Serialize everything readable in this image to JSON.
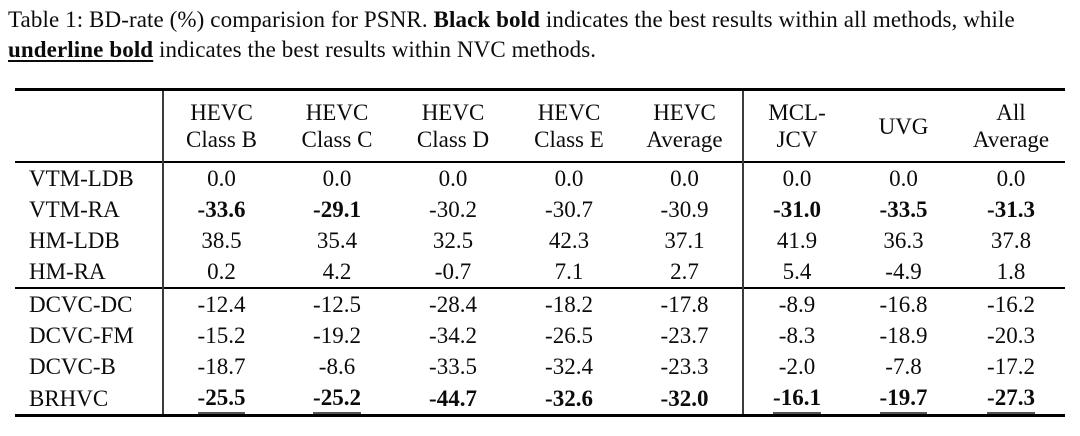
{
  "caption": {
    "segments": [
      {
        "text": "Table 1: BD-rate (%) comparision for PSNR. ",
        "style": "plain"
      },
      {
        "text": "Black bold",
        "style": "bold"
      },
      {
        "text": " indicates the best results within all methods, while ",
        "style": "plain"
      },
      {
        "text": "underline bold",
        "style": "bold-underline"
      },
      {
        "text": " indicates the best results within NVC methods.",
        "style": "plain"
      }
    ]
  },
  "table": {
    "header": {
      "row_label": "",
      "columns": [
        {
          "lines": [
            "HEVC",
            "Class B"
          ]
        },
        {
          "lines": [
            "HEVC",
            "Class C"
          ]
        },
        {
          "lines": [
            "HEVC",
            "Class D"
          ]
        },
        {
          "lines": [
            "HEVC",
            "Class E"
          ]
        },
        {
          "lines": [
            "HEVC",
            "Average"
          ]
        },
        {
          "lines": [
            "MCL-",
            "JCV"
          ]
        },
        {
          "lines": [
            "UVG"
          ]
        },
        {
          "lines": [
            "All",
            "Average"
          ]
        }
      ]
    },
    "groups": [
      {
        "name": "traditional-codecs",
        "rows": [
          {
            "label": "VTM-LDB",
            "cells": [
              {
                "v": "0.0",
                "style": "plain"
              },
              {
                "v": "0.0",
                "style": "plain"
              },
              {
                "v": "0.0",
                "style": "plain"
              },
              {
                "v": "0.0",
                "style": "plain"
              },
              {
                "v": "0.0",
                "style": "plain"
              },
              {
                "v": "0.0",
                "style": "plain"
              },
              {
                "v": "0.0",
                "style": "plain"
              },
              {
                "v": "0.0",
                "style": "plain"
              }
            ]
          },
          {
            "label": "VTM-RA",
            "cells": [
              {
                "v": "-33.6",
                "style": "bold"
              },
              {
                "v": "-29.1",
                "style": "bold"
              },
              {
                "v": "-30.2",
                "style": "plain"
              },
              {
                "v": "-30.7",
                "style": "plain"
              },
              {
                "v": "-30.9",
                "style": "plain"
              },
              {
                "v": "-31.0",
                "style": "bold"
              },
              {
                "v": "-33.5",
                "style": "bold"
              },
              {
                "v": "-31.3",
                "style": "bold"
              }
            ]
          },
          {
            "label": "HM-LDB",
            "cells": [
              {
                "v": "38.5",
                "style": "plain"
              },
              {
                "v": "35.4",
                "style": "plain"
              },
              {
                "v": "32.5",
                "style": "plain"
              },
              {
                "v": "42.3",
                "style": "plain"
              },
              {
                "v": "37.1",
                "style": "plain"
              },
              {
                "v": "41.9",
                "style": "plain"
              },
              {
                "v": "36.3",
                "style": "plain"
              },
              {
                "v": "37.8",
                "style": "plain"
              }
            ]
          },
          {
            "label": "HM-RA",
            "cells": [
              {
                "v": "0.2",
                "style": "plain"
              },
              {
                "v": "4.2",
                "style": "plain"
              },
              {
                "v": "-0.7",
                "style": "plain"
              },
              {
                "v": "7.1",
                "style": "plain"
              },
              {
                "v": "2.7",
                "style": "plain"
              },
              {
                "v": "5.4",
                "style": "plain"
              },
              {
                "v": "-4.9",
                "style": "plain"
              },
              {
                "v": "1.8",
                "style": "plain"
              }
            ]
          }
        ]
      },
      {
        "name": "neural-video-codecs",
        "rows": [
          {
            "label": "DCVC-DC",
            "cells": [
              {
                "v": "-12.4",
                "style": "plain"
              },
              {
                "v": "-12.5",
                "style": "plain"
              },
              {
                "v": "-28.4",
                "style": "plain"
              },
              {
                "v": "-18.2",
                "style": "plain"
              },
              {
                "v": "-17.8",
                "style": "plain"
              },
              {
                "v": "-8.9",
                "style": "plain"
              },
              {
                "v": "-16.8",
                "style": "plain"
              },
              {
                "v": "-16.2",
                "style": "plain"
              }
            ]
          },
          {
            "label": "DCVC-FM",
            "cells": [
              {
                "v": "-15.2",
                "style": "plain"
              },
              {
                "v": "-19.2",
                "style": "plain"
              },
              {
                "v": "-34.2",
                "style": "plain"
              },
              {
                "v": "-26.5",
                "style": "plain"
              },
              {
                "v": "-23.7",
                "style": "plain"
              },
              {
                "v": "-8.3",
                "style": "plain"
              },
              {
                "v": "-18.9",
                "style": "plain"
              },
              {
                "v": "-20.3",
                "style": "plain"
              }
            ]
          },
          {
            "label": "DCVC-B",
            "cells": [
              {
                "v": "-18.7",
                "style": "plain"
              },
              {
                "v": "-8.6",
                "style": "plain"
              },
              {
                "v": "-33.5",
                "style": "plain"
              },
              {
                "v": "-32.4",
                "style": "plain"
              },
              {
                "v": "-23.3",
                "style": "plain"
              },
              {
                "v": "-2.0",
                "style": "plain"
              },
              {
                "v": "-7.8",
                "style": "plain"
              },
              {
                "v": "-17.2",
                "style": "plain"
              }
            ]
          },
          {
            "label": "BRHVC",
            "cells": [
              {
                "v": "-25.5",
                "style": "bold-underline"
              },
              {
                "v": "-25.2",
                "style": "bold-underline"
              },
              {
                "v": "-44.7",
                "style": "bold"
              },
              {
                "v": "-32.6",
                "style": "bold"
              },
              {
                "v": "-32.0",
                "style": "bold"
              },
              {
                "v": "-16.1",
                "style": "bold-underline"
              },
              {
                "v": "-19.7",
                "style": "bold-underline"
              },
              {
                "v": "-27.3",
                "style": "bold-underline"
              }
            ]
          }
        ]
      }
    ]
  },
  "colors": {
    "text": "#0b0b0b",
    "rule": "#000000",
    "column_divider": "#3c3c3c",
    "nvc_underline": "#555555",
    "background": "#ffffff"
  }
}
